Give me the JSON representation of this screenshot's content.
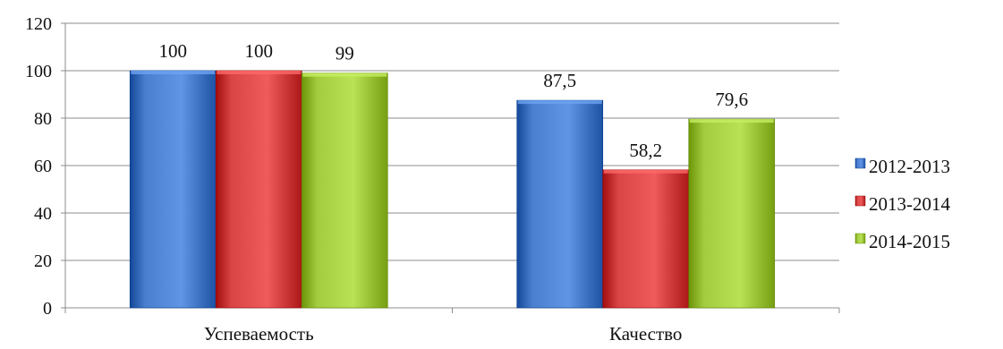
{
  "chart_data": {
    "type": "bar",
    "title": "",
    "xlabel": "",
    "ylabel": "",
    "categories": [
      "Успеваемость",
      "Качество"
    ],
    "series": [
      {
        "name": "2012-2013",
        "values": [
          100,
          87.5
        ],
        "labels": [
          "100",
          "87,5"
        ],
        "color": "#4a7fd0"
      },
      {
        "name": "2013-2014",
        "values": [
          100,
          58.2
        ],
        "labels": [
          "100",
          "58,2"
        ],
        "color": "#d94545"
      },
      {
        "name": "2014-2015",
        "values": [
          99,
          79.6
        ],
        "labels": [
          "99",
          "79,6"
        ],
        "color": "#a3cc3f"
      }
    ],
    "ylim": [
      0,
      120
    ],
    "yticks": [
      0,
      20,
      40,
      60,
      80,
      100,
      120
    ],
    "grid": true,
    "legend_position": "right"
  }
}
